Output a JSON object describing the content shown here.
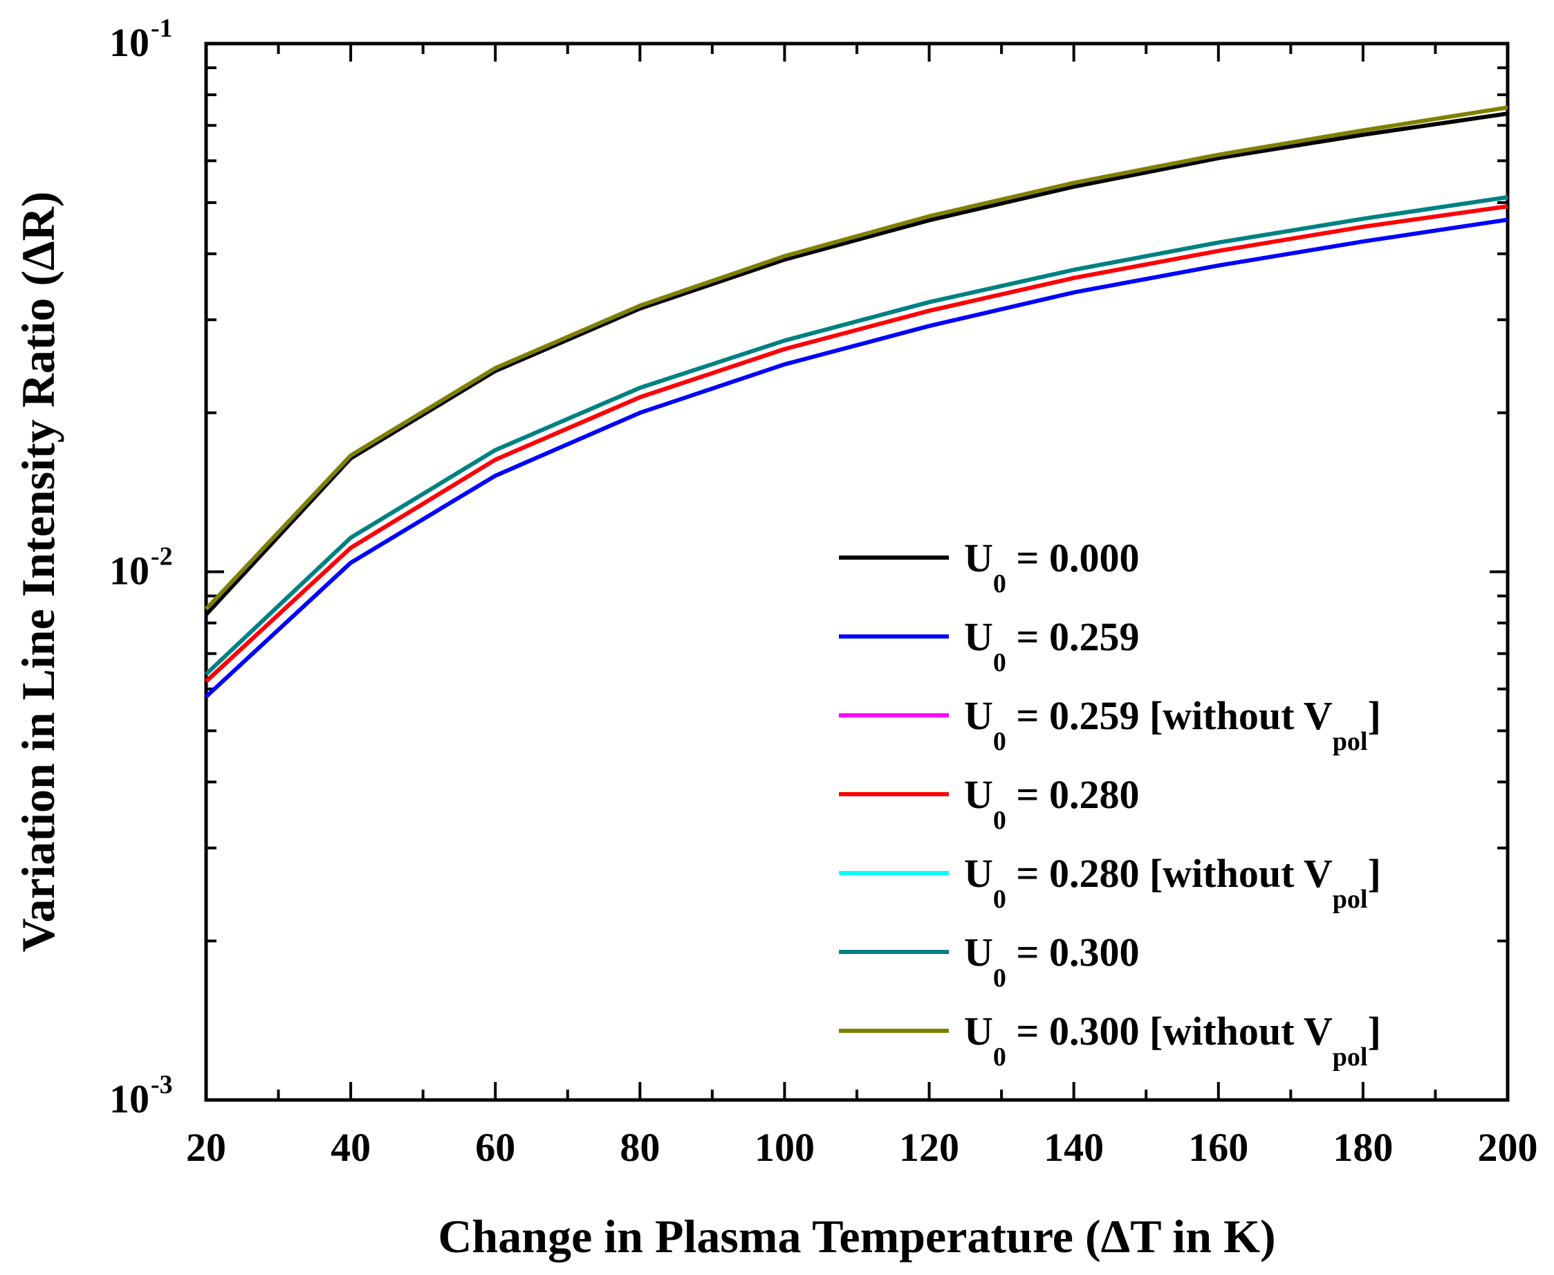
{
  "chart_data": {
    "type": "line",
    "xlabel": "Change in Plasma Temperature (ΔT in K)",
    "ylabel": "Variation in Line Intensity Ratio (ΔR)",
    "xlim": [
      20,
      200
    ],
    "ylim": [
      0.001,
      0.1
    ],
    "yscale": "log",
    "x_ticks": [
      "20",
      "40",
      "60",
      "80",
      "100",
      "120",
      "140",
      "160",
      "180",
      "200"
    ],
    "y_ticks": [
      {
        "base": "10",
        "exp": "-3",
        "value": 0.001
      },
      {
        "base": "10",
        "exp": "-2",
        "value": 0.01
      },
      {
        "base": "10",
        "exp": "-1",
        "value": 0.1
      }
    ],
    "legend_position": "bottom-right",
    "x": [
      20,
      40,
      60,
      80,
      100,
      120,
      140,
      160,
      180,
      200
    ],
    "series": [
      {
        "name": "U0 = 0.000",
        "label": {
          "lead": "U",
          "sub": "0",
          "rest": " = 0.000",
          "suffix": "",
          "vsub": ""
        },
        "color": "#000000",
        "values": [
          0.0083,
          0.0164,
          0.024,
          0.0315,
          0.039,
          0.0463,
          0.0536,
          0.0607,
          0.0672,
          0.0737
        ]
      },
      {
        "name": "U0 = 0.259",
        "label": {
          "lead": "U",
          "sub": "0",
          "rest": " = 0.259",
          "suffix": "",
          "vsub": ""
        },
        "color": "#0000FF",
        "values": [
          0.0058,
          0.0104,
          0.0152,
          0.02,
          0.0247,
          0.0292,
          0.0338,
          0.038,
          0.0422,
          0.0464
        ]
      },
      {
        "name": "U0 = 0.259 [without Vpol]",
        "label": {
          "lead": "U",
          "sub": "0",
          "rest": " = 0.259 [without V",
          "vsub": "pol",
          "suffix": "]"
        },
        "color": "#FF00FF",
        "values": [
          0.0062,
          0.0111,
          0.0163,
          0.0214,
          0.0264,
          0.0312,
          0.036,
          0.0405,
          0.045,
          0.0492
        ]
      },
      {
        "name": "U0 = 0.280",
        "label": {
          "lead": "U",
          "sub": "0",
          "rest": " = 0.280",
          "suffix": "",
          "vsub": ""
        },
        "color": "#FF0000",
        "values": [
          0.0062,
          0.0111,
          0.0163,
          0.0214,
          0.0264,
          0.0312,
          0.036,
          0.0405,
          0.045,
          0.0492
        ]
      },
      {
        "name": "U0 = 0.280 [without Vpol]",
        "label": {
          "lead": "U",
          "sub": "0",
          "rest": " = 0.280 [without V",
          "vsub": "pol",
          "suffix": "]"
        },
        "color": "#00FFFF",
        "values": [
          0.0064,
          0.0116,
          0.017,
          0.0223,
          0.0274,
          0.0324,
          0.0373,
          0.042,
          0.0466,
          0.0512
        ]
      },
      {
        "name": "U0 = 0.300",
        "label": {
          "lead": "U",
          "sub": "0",
          "rest": " = 0.300",
          "suffix": "",
          "vsub": ""
        },
        "color": "#008080",
        "values": [
          0.0064,
          0.0116,
          0.017,
          0.0223,
          0.0274,
          0.0324,
          0.0373,
          0.042,
          0.0466,
          0.0512
        ]
      },
      {
        "name": "U0 = 0.300 [without Vpol]",
        "label": {
          "lead": "U",
          "sub": "0",
          "rest": " = 0.300 [without V",
          "vsub": "pol",
          "suffix": "]"
        },
        "color": "#808000",
        "values": [
          0.0085,
          0.0166,
          0.0243,
          0.0319,
          0.0396,
          0.0471,
          0.0545,
          0.0616,
          0.0685,
          0.0757
        ]
      }
    ]
  }
}
